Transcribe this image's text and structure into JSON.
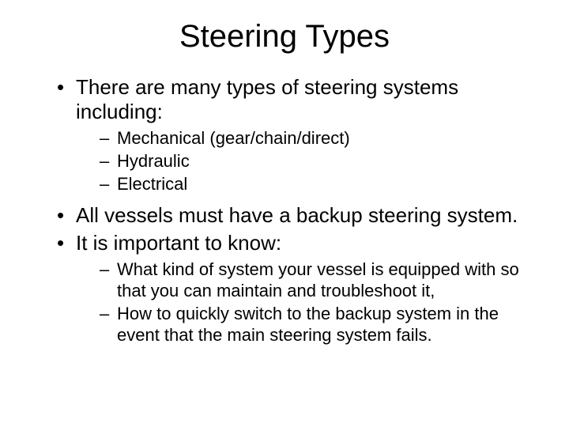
{
  "title": "Steering Types",
  "background_color": "#ffffff",
  "text_color": "#000000",
  "title_fontsize": 40,
  "bullet_fontsize": 26,
  "subbullet_fontsize": 22,
  "bullets": {
    "b1": "There are many types of steering systems including:",
    "b1_sub1": "Mechanical (gear/chain/direct)",
    "b1_sub2": "Hydraulic",
    "b1_sub3": "Electrical",
    "b2": "All vessels must have a backup steering system.",
    "b3": "It is important to know:",
    "b3_sub1": "What kind of system your vessel is equipped with so that you can maintain and troubleshoot it,",
    "b3_sub2": "How to quickly switch to the backup system in the event that the main steering system fails."
  }
}
